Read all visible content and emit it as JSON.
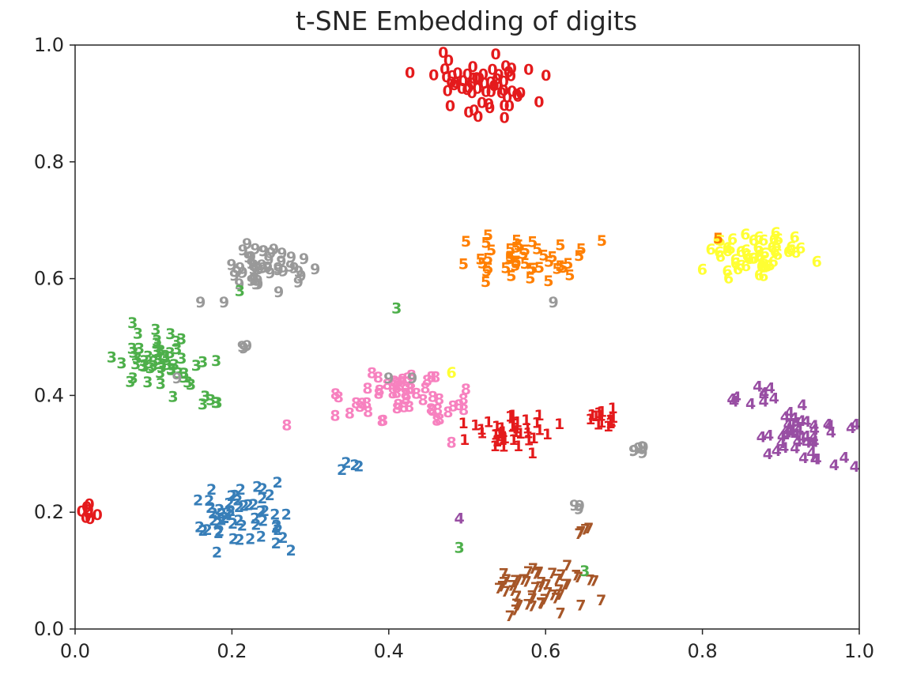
{
  "chart_data": {
    "type": "scatter",
    "title": "t-SNE Embedding of digits",
    "xlabel": "",
    "ylabel": "",
    "xlim": [
      0.0,
      1.0
    ],
    "ylim": [
      0.0,
      1.0
    ],
    "grid": false,
    "xticks": [
      0.0,
      0.2,
      0.4,
      0.6,
      0.8,
      1.0
    ],
    "yticks": [
      0.0,
      0.2,
      0.4,
      0.6,
      0.8,
      1.0
    ],
    "xtick_labels": [
      "0.0",
      "0.2",
      "0.4",
      "0.6",
      "0.8",
      "1.0"
    ],
    "ytick_labels": [
      "0.0",
      "0.2",
      "0.4",
      "0.6",
      "0.8",
      "1.0"
    ],
    "marker": "digit text label colored by class",
    "digit_colors": {
      "0": "#e41a1c",
      "1": "#e41a1c",
      "2": "#377eb8",
      "3": "#4daf4a",
      "4": "#984ea3",
      "5": "#ff7f00",
      "6": "#ffff33",
      "7": "#a65628",
      "8": "#f781bf",
      "9": "#999999"
    },
    "clusters": [
      {
        "digit": "0",
        "center": [
          0.52,
          0.93
        ],
        "spread": [
          0.07,
          0.05
        ],
        "count": 60
      },
      {
        "digit": "0",
        "center": [
          0.02,
          0.2
        ],
        "spread": [
          0.012,
          0.015
        ],
        "count": 8
      },
      {
        "digit": "1",
        "center": [
          0.55,
          0.34
        ],
        "spread": [
          0.05,
          0.03
        ],
        "count": 38
      },
      {
        "digit": "1",
        "center": [
          0.67,
          0.36
        ],
        "spread": [
          0.04,
          0.015
        ],
        "count": 15
      },
      {
        "digit": "2",
        "center": [
          0.22,
          0.19
        ],
        "spread": [
          0.07,
          0.05
        ],
        "count": 55
      },
      {
        "digit": "2",
        "center": [
          0.35,
          0.28
        ],
        "spread": [
          0.012,
          0.008
        ],
        "count": 4
      },
      {
        "digit": "3",
        "center": [
          0.11,
          0.46
        ],
        "spread": [
          0.05,
          0.05
        ],
        "count": 50
      },
      {
        "digit": "3",
        "center": [
          0.17,
          0.39
        ],
        "spread": [
          0.015,
          0.008
        ],
        "count": 5
      },
      {
        "digit": "4",
        "center": [
          0.93,
          0.33
        ],
        "spread": [
          0.06,
          0.05
        ],
        "count": 45
      },
      {
        "digit": "4",
        "center": [
          0.86,
          0.4
        ],
        "spread": [
          0.035,
          0.015
        ],
        "count": 10
      },
      {
        "digit": "5",
        "center": [
          0.56,
          0.63
        ],
        "spread": [
          0.09,
          0.045
        ],
        "count": 45
      },
      {
        "digit": "6",
        "center": [
          0.87,
          0.64
        ],
        "spread": [
          0.06,
          0.04
        ],
        "count": 55
      },
      {
        "digit": "7",
        "center": [
          0.59,
          0.07
        ],
        "spread": [
          0.07,
          0.04
        ],
        "count": 50
      },
      {
        "digit": "7",
        "center": [
          0.65,
          0.17
        ],
        "spread": [
          0.012,
          0.008
        ],
        "count": 4
      },
      {
        "digit": "8",
        "center": [
          0.42,
          0.4
        ],
        "spread": [
          0.07,
          0.05
        ],
        "count": 55
      },
      {
        "digit": "9",
        "center": [
          0.25,
          0.62
        ],
        "spread": [
          0.05,
          0.045
        ],
        "count": 45
      },
      {
        "digit": "9",
        "center": [
          0.72,
          0.31
        ],
        "spread": [
          0.012,
          0.01
        ],
        "count": 6
      },
      {
        "digit": "9",
        "center": [
          0.64,
          0.21
        ],
        "spread": [
          0.01,
          0.006
        ],
        "count": 3
      },
      {
        "digit": "9",
        "center": [
          0.22,
          0.48
        ],
        "spread": [
          0.008,
          0.01
        ],
        "count": 3
      }
    ],
    "points": [
      {
        "x": 0.82,
        "y": 0.67,
        "label": "5"
      },
      {
        "x": 0.41,
        "y": 0.55,
        "label": "3"
      },
      {
        "x": 0.48,
        "y": 0.44,
        "label": "6"
      },
      {
        "x": 0.18,
        "y": 0.46,
        "label": "3"
      },
      {
        "x": 0.13,
        "y": 0.43,
        "label": "9"
      },
      {
        "x": 0.27,
        "y": 0.35,
        "label": "8"
      },
      {
        "x": 0.49,
        "y": 0.19,
        "label": "4"
      },
      {
        "x": 0.49,
        "y": 0.14,
        "label": "3"
      },
      {
        "x": 0.65,
        "y": 0.1,
        "label": "3"
      },
      {
        "x": 0.61,
        "y": 0.56,
        "label": "9"
      },
      {
        "x": 0.43,
        "y": 0.43,
        "label": "9"
      },
      {
        "x": 0.4,
        "y": 0.43,
        "label": "9"
      },
      {
        "x": 0.48,
        "y": 0.32,
        "label": "8"
      },
      {
        "x": 0.16,
        "y": 0.56,
        "label": "9"
      },
      {
        "x": 0.19,
        "y": 0.56,
        "label": "9"
      },
      {
        "x": 0.21,
        "y": 0.58,
        "label": "3"
      }
    ]
  }
}
